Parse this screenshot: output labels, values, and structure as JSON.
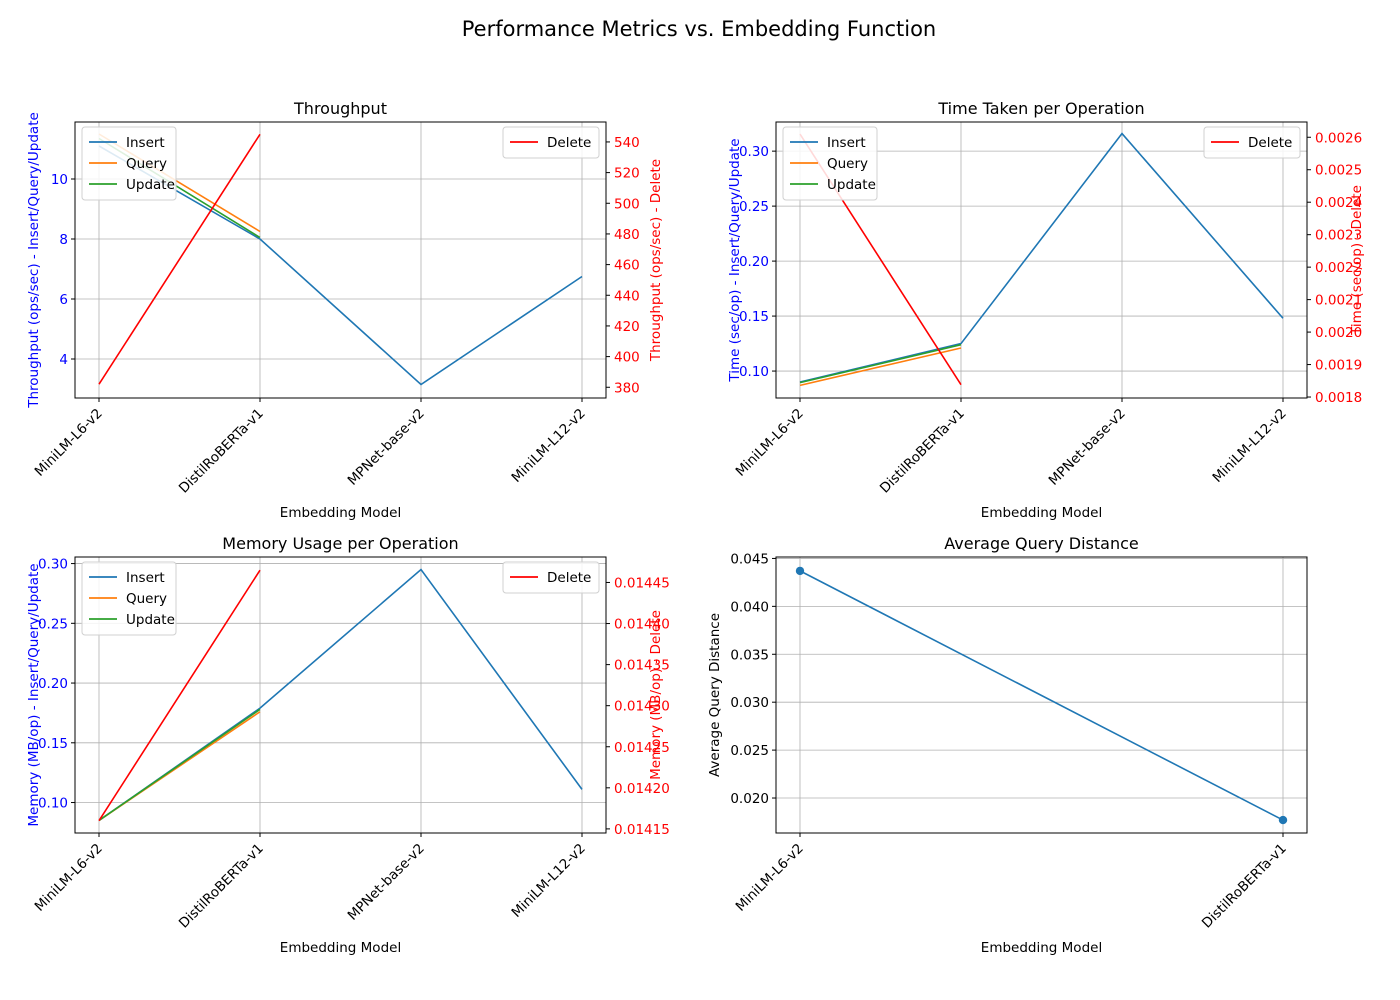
{
  "figure_title": "Performance Metrics vs. Embedding Function",
  "colors": {
    "insert": "#1f77b4",
    "query": "#ff7f0e",
    "update": "#2ca02c",
    "delete": "#ff0000",
    "left_axis": "#0000ff",
    "right_axis": "#ff0000"
  },
  "chart_data": [
    {
      "id": "throughput",
      "type": "line",
      "title": "Throughput",
      "xlabel": "Embedding Model",
      "ylabel_left": "Throughput (ops/sec) - Insert/Query/Update",
      "ylabel_right": "Throughput (ops/sec) - Delete",
      "categories": [
        "MiniLM-L6-v2",
        "DistilRoBERTa-v1",
        "MPNet-base-v2",
        "MiniLM-L12-v2"
      ],
      "ylim_left": [
        2.7,
        11.9
      ],
      "ylim_right": [
        373,
        553
      ],
      "yticks_left": [
        "4",
        "6",
        "8",
        "10"
      ],
      "yticks_right": [
        "380",
        "400",
        "420",
        "440",
        "460",
        "480",
        "500",
        "520",
        "540"
      ],
      "series_left": [
        {
          "name": "Insert",
          "values": [
            11.1,
            8.0,
            3.15,
            6.75
          ]
        },
        {
          "name": "Query",
          "values": [
            11.5,
            8.25,
            null,
            null
          ]
        },
        {
          "name": "Update",
          "values": [
            11.35,
            8.05,
            null,
            null
          ]
        }
      ],
      "series_right": [
        {
          "name": "Delete",
          "values": [
            382,
            545,
            null,
            null
          ]
        }
      ],
      "grid": true,
      "legend_left": "top-left",
      "legend_right": "top-right"
    },
    {
      "id": "time",
      "type": "line",
      "title": "Time Taken per Operation",
      "xlabel": "Embedding Model",
      "ylabel_left": "Time (sec/op) - Insert/Query/Update",
      "ylabel_right": "Time (sec/op) - Delete",
      "categories": [
        "MiniLM-L6-v2",
        "DistilRoBERTa-v1",
        "MPNet-base-v2",
        "MiniLM-L12-v2"
      ],
      "ylim_left": [
        0.0755,
        0.3265
      ],
      "ylim_right": [
        0.001797,
        0.002647
      ],
      "yticks_left": [
        "0.10",
        "0.15",
        "0.20",
        "0.25",
        "0.30"
      ],
      "yticks_right": [
        "0.0018",
        "0.0019",
        "0.0020",
        "0.0021",
        "0.0022",
        "0.0023",
        "0.0024",
        "0.0025",
        "0.0026"
      ],
      "series_left": [
        {
          "name": "Insert",
          "values": [
            0.09,
            0.125,
            0.316,
            0.148
          ]
        },
        {
          "name": "Query",
          "values": [
            0.087,
            0.121,
            null,
            null
          ]
        },
        {
          "name": "Update",
          "values": [
            0.0895,
            0.124,
            null,
            null
          ]
        }
      ],
      "series_right": [
        {
          "name": "Delete",
          "values": [
            0.00261,
            0.001838,
            null,
            null
          ]
        }
      ],
      "grid": true,
      "legend_left": "top-left",
      "legend_right": "top-right"
    },
    {
      "id": "memory",
      "type": "line",
      "title": "Memory Usage per Operation",
      "xlabel": "Embedding Model",
      "ylabel_left": "Memory (MB/op) - Insert/Query/Update",
      "ylabel_right": "Memory (MB/op) - Delete",
      "categories": [
        "MiniLM-L6-v2",
        "DistilRoBERTa-v1",
        "MPNet-base-v2",
        "MiniLM-L12-v2"
      ],
      "ylim_left": [
        0.0745,
        0.3055
      ],
      "ylim_right": [
        0.014145,
        0.014481
      ],
      "yticks_left": [
        "0.10",
        "0.15",
        "0.20",
        "0.25",
        "0.30"
      ],
      "yticks_right": [
        "0.01415",
        "0.01420",
        "0.01425",
        "0.01430",
        "0.01435",
        "0.01440",
        "0.01445"
      ],
      "series_left": [
        {
          "name": "Insert",
          "values": [
            0.085,
            0.179,
            0.295,
            0.111
          ]
        },
        {
          "name": "Query",
          "values": [
            0.085,
            0.176,
            null,
            null
          ]
        },
        {
          "name": "Update",
          "values": [
            0.085,
            0.178,
            null,
            null
          ]
        }
      ],
      "series_right": [
        {
          "name": "Delete",
          "values": [
            0.01416,
            0.014465,
            null,
            null
          ]
        }
      ],
      "grid": true,
      "legend_left": "top-left",
      "legend_right": "top-right"
    },
    {
      "id": "distance",
      "type": "line",
      "title": "Average Query Distance",
      "xlabel": "Embedding Model",
      "ylabel_left": "Average Query Distance",
      "categories": [
        "MiniLM-L6-v2",
        "DistilRoBERTa-v1"
      ],
      "ylim_left": [
        0.01635,
        0.04515
      ],
      "yticks_left": [
        "0.020",
        "0.025",
        "0.030",
        "0.035",
        "0.040",
        "0.045"
      ],
      "series_left": [
        {
          "name": "",
          "values": [
            0.0437,
            0.0177
          ],
          "markers": true
        }
      ],
      "grid": true
    }
  ]
}
